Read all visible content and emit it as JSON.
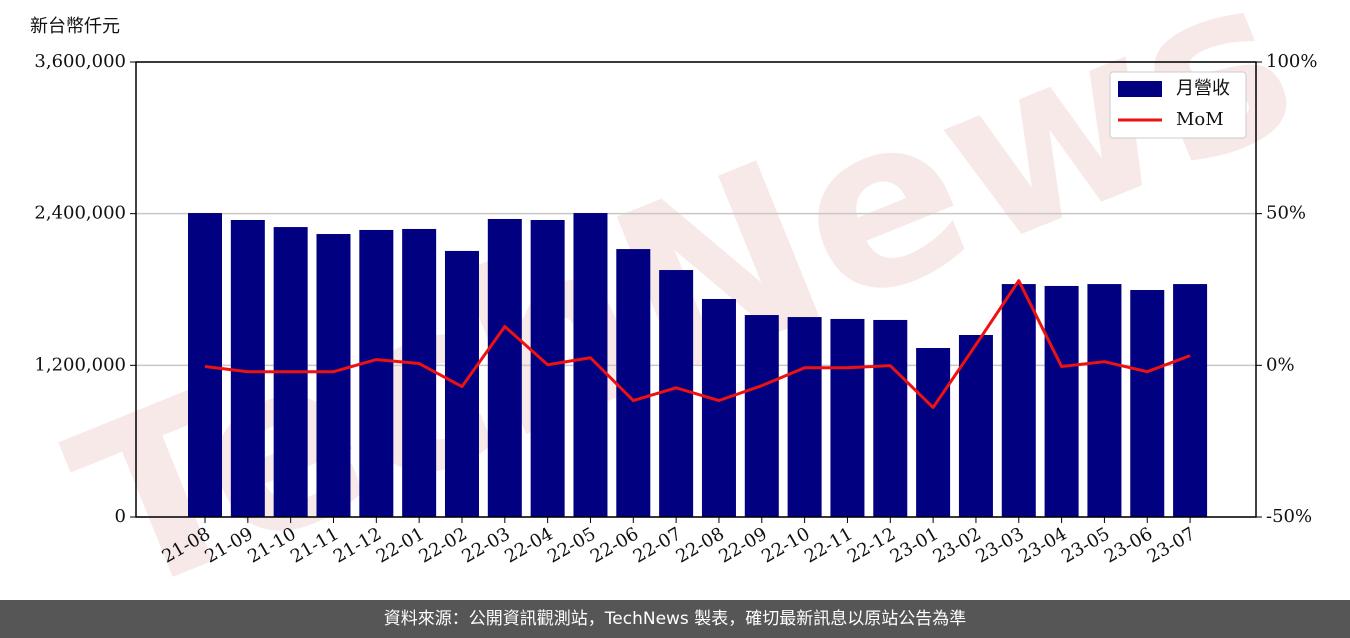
{
  "chart_data": {
    "type": "bar",
    "y_label": "新台幣仟元",
    "watermark": "TechNews",
    "footer": "資料來源：公開資訊觀測站，TechNews 製表，確切最新訊息以原站公告為準",
    "categories": [
      "21-08",
      "21-09",
      "21-10",
      "21-11",
      "21-12",
      "22-01",
      "22-02",
      "22-03",
      "22-04",
      "22-05",
      "22-06",
      "22-07",
      "22-08",
      "22-09",
      "22-10",
      "22-11",
      "22-12",
      "23-01",
      "23-02",
      "23-03",
      "23-04",
      "23-05",
      "23-06",
      "23-07"
    ],
    "series": [
      {
        "name": "月營收",
        "type": "bar",
        "color": "#000080",
        "values": [
          2405000,
          2350000,
          2294000,
          2239000,
          2271000,
          2279000,
          2105000,
          2358000,
          2350000,
          2405000,
          2120000,
          1954000,
          1725000,
          1598000,
          1582000,
          1567000,
          1559000,
          1337000,
          1440000,
          1843000,
          1828000,
          1843000,
          1796000,
          1843000
        ]
      },
      {
        "name": "MoM",
        "type": "line",
        "color": "#ee1111",
        "axis": "y2",
        "values": [
          -0.4,
          -2.1,
          -2.1,
          -2.1,
          1.9,
          0.6,
          -7.0,
          12.8,
          0.2,
          2.5,
          -11.6,
          -7.4,
          -11.6,
          -6.7,
          -0.8,
          -0.8,
          -0.1,
          -13.9,
          6.8,
          27.9,
          -0.4,
          1.2,
          -2.1,
          3.2
        ]
      }
    ],
    "ylim": [
      0,
      3600000
    ],
    "yticks": [
      0,
      {
        "value": 1200000,
        "label": "1,200,000"
      },
      {
        "value": 2400000,
        "label": "2,400,000"
      },
      {
        "value": 3600000,
        "label": "3,600,000"
      }
    ],
    "y2lim": [
      -50,
      100
    ],
    "y2ticks": [
      {
        "value": -50,
        "label": "-50%"
      },
      {
        "value": 0,
        "label": "0%"
      },
      {
        "value": 50,
        "label": "50%"
      },
      {
        "value": 100,
        "label": "100%"
      }
    ],
    "grid": true,
    "legend": "upper right"
  }
}
